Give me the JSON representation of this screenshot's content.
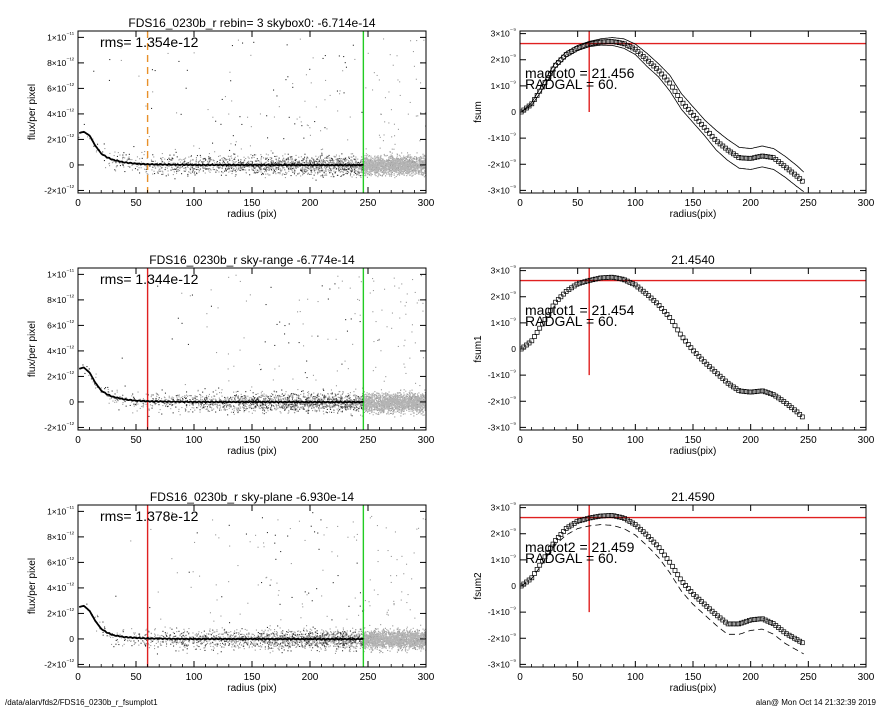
{
  "chart_data": [
    {
      "type": "scatter",
      "title": "FDS16_0230b_r rebin= 3    skybox0: -6.714e-14",
      "xlabel": "radius (pix)",
      "ylabel": "flux/per pixel",
      "xlim": [
        0,
        300
      ],
      "ylim": [
        -2.2e-12,
        1.05e-11
      ],
      "xticks": [
        0,
        50,
        100,
        150,
        200,
        250,
        300
      ],
      "yticks": [
        {
          "value": -2e-12,
          "label": "-2×10⁻¹²"
        },
        {
          "value": 0,
          "label": "0"
        },
        {
          "value": 2e-12,
          "label": "2×10⁻¹²"
        },
        {
          "value": 4e-12,
          "label": "4×10⁻¹²"
        },
        {
          "value": 6e-12,
          "label": "6×10⁻¹²"
        },
        {
          "value": 8e-12,
          "label": "8×10⁻¹²"
        },
        {
          "value": 1e-11,
          "label": "1×10⁻¹¹"
        }
      ],
      "annotations": [
        "rms= 1.354e-12"
      ],
      "vlines": [
        {
          "x": 60,
          "color": "#e8902a",
          "dashed": true
        },
        {
          "x": 246,
          "color": "#22cc22",
          "dashed": false
        }
      ],
      "profile": {
        "x": [
          1,
          5,
          10,
          15,
          20,
          25,
          30,
          40,
          50,
          60,
          80,
          100,
          150,
          200,
          246
        ],
        "y": [
          2.5e-12,
          2.6e-12,
          2.3e-12,
          1.5e-12,
          9e-13,
          6e-13,
          4e-13,
          2e-13,
          1e-13,
          5e-14,
          2e-14,
          0,
          0,
          -1e-14,
          -1e-14
        ]
      }
    },
    {
      "type": "scatter",
      "title": "FDS16_0230b_r sky-range -6.774e-14",
      "xlabel": "radius (pix)",
      "ylabel": "flux/per pixel",
      "xlim": [
        0,
        300
      ],
      "ylim": [
        -2.2e-12,
        1.05e-11
      ],
      "xticks": [
        0,
        50,
        100,
        150,
        200,
        250,
        300
      ],
      "yticks": [
        {
          "value": -2e-12,
          "label": "-2×10⁻¹²"
        },
        {
          "value": 0,
          "label": "0"
        },
        {
          "value": 2e-12,
          "label": "2×10⁻¹²"
        },
        {
          "value": 4e-12,
          "label": "4×10⁻¹²"
        },
        {
          "value": 6e-12,
          "label": "6×10⁻¹²"
        },
        {
          "value": 8e-12,
          "label": "8×10⁻¹²"
        },
        {
          "value": 1e-11,
          "label": "1×10⁻¹¹"
        }
      ],
      "annotations": [
        "rms= 1.344e-12"
      ],
      "vlines": [
        {
          "x": 60,
          "color": "#e02020",
          "dashed": false
        },
        {
          "x": 246,
          "color": "#22cc22",
          "dashed": false
        }
      ],
      "profile": {
        "x": [
          1,
          5,
          10,
          15,
          20,
          25,
          30,
          40,
          50,
          60,
          80,
          100,
          150,
          200,
          246
        ],
        "y": [
          2.6e-12,
          2.7e-12,
          2.3e-12,
          1.5e-12,
          9e-13,
          6e-13,
          4e-13,
          2e-13,
          1e-13,
          5e-14,
          2e-14,
          0,
          0,
          -1e-14,
          -1e-14
        ]
      }
    },
    {
      "type": "scatter",
      "title": "FDS16_0230b_r sky-plane -6.930e-14",
      "xlabel": "radius (pix)",
      "ylabel": "flux/per pixel",
      "xlim": [
        0,
        300
      ],
      "ylim": [
        -2.2e-12,
        1.05e-11
      ],
      "xticks": [
        0,
        50,
        100,
        150,
        200,
        250,
        300
      ],
      "yticks": [
        {
          "value": -2e-12,
          "label": "-2×10⁻¹²"
        },
        {
          "value": 0,
          "label": "0"
        },
        {
          "value": 2e-12,
          "label": "2×10⁻¹²"
        },
        {
          "value": 4e-12,
          "label": "4×10⁻¹²"
        },
        {
          "value": 6e-12,
          "label": "6×10⁻¹²"
        },
        {
          "value": 8e-12,
          "label": "8×10⁻¹²"
        },
        {
          "value": 1e-11,
          "label": "1×10⁻¹¹"
        }
      ],
      "annotations": [
        "rms= 1.378e-12"
      ],
      "vlines": [
        {
          "x": 60,
          "color": "#e02020",
          "dashed": false
        },
        {
          "x": 246,
          "color": "#22cc22",
          "dashed": false
        }
      ],
      "profile": {
        "x": [
          1,
          5,
          10,
          15,
          20,
          25,
          30,
          40,
          50,
          60,
          80,
          100,
          150,
          200,
          246
        ],
        "y": [
          2.5e-12,
          2.6e-12,
          2.2e-12,
          1.4e-12,
          8e-13,
          5e-13,
          3e-13,
          1.5e-13,
          8e-14,
          4e-14,
          1e-14,
          0,
          0,
          -1e-14,
          -1e-14
        ]
      }
    },
    {
      "type": "line",
      "title": "",
      "xlabel": "radius(pix)",
      "ylabel": "fsum",
      "xlim": [
        0,
        300
      ],
      "ylim": [
        -3.1e-09,
        3.1e-09
      ],
      "xticks": [
        0,
        50,
        100,
        150,
        200,
        250,
        300
      ],
      "yticks": [
        {
          "value": -3e-09,
          "label": "-3×10⁻⁹"
        },
        {
          "value": -2e-09,
          "label": "-2×10⁻⁹"
        },
        {
          "value": -1e-09,
          "label": "-1×10⁻⁹"
        },
        {
          "value": 0,
          "label": "0"
        },
        {
          "value": 1e-09,
          "label": "1×10⁻⁹"
        },
        {
          "value": 2e-09,
          "label": "2×10⁻⁹"
        },
        {
          "value": 3e-09,
          "label": "3×10⁻⁹"
        }
      ],
      "annotations": [
        "magtot0 =  21.456",
        "RADGAL =     60."
      ],
      "hline": {
        "y": 2.62e-09,
        "color": "#e02020"
      },
      "vline": {
        "x": 60,
        "color": "#e02020",
        "y_range": [
          0,
          3.1e-09
        ]
      },
      "series": [
        {
          "style": "markers",
          "x": [
            1,
            10,
            20,
            30,
            40,
            50,
            60,
            70,
            80,
            90,
            100,
            110,
            120,
            130,
            140,
            150,
            160,
            170,
            180,
            190,
            200,
            210,
            220,
            230,
            240,
            246
          ],
          "y": [
            0,
            3e-10,
            1e-09,
            1.75e-09,
            2.2e-09,
            2.45e-09,
            2.6e-09,
            2.68e-09,
            2.7e-09,
            2.62e-09,
            2.4e-09,
            2e-09,
            1.6e-09,
            1.1e-09,
            4e-10,
            -1e-10,
            -6e-10,
            -1.1e-09,
            -1.45e-09,
            -1.75e-09,
            -1.78e-09,
            -1.68e-09,
            -1.75e-09,
            -2.1e-09,
            -2.45e-09,
            -2.7e-09
          ]
        },
        {
          "style": "line",
          "x": [
            1,
            10,
            20,
            30,
            40,
            50,
            60,
            70,
            80,
            90,
            100,
            110,
            120,
            130,
            140,
            150,
            160,
            170,
            180,
            190,
            200,
            210,
            220,
            230,
            240,
            246
          ],
          "y": [
            0,
            3.5e-10,
            1.1e-09,
            1.85e-09,
            2.3e-09,
            2.55e-09,
            2.7e-09,
            2.8e-09,
            2.85e-09,
            2.8e-09,
            2.6e-09,
            2.25e-09,
            1.85e-09,
            1.4e-09,
            7e-10,
            2e-10,
            -3e-10,
            -7e-10,
            -1.05e-09,
            -1.35e-09,
            -1.4e-09,
            -1.3e-09,
            -1.4e-09,
            -1.7e-09,
            -2.05e-09,
            -2.3e-09
          ]
        },
        {
          "style": "line",
          "x": [
            1,
            10,
            20,
            30,
            40,
            50,
            60,
            70,
            80,
            90,
            100,
            110,
            120,
            130,
            140,
            150,
            160,
            170,
            180,
            190,
            200,
            210,
            220,
            230,
            240,
            246
          ],
          "y": [
            0,
            2.5e-10,
            9e-10,
            1.65e-09,
            2.1e-09,
            2.35e-09,
            2.5e-09,
            2.56e-09,
            2.55e-09,
            2.44e-09,
            2.2e-09,
            1.75e-09,
            1.35e-09,
            8e-10,
            1e-10,
            -4e-10,
            -9e-10,
            -1.45e-09,
            -1.85e-09,
            -2.15e-09,
            -2.2e-09,
            -2.1e-09,
            -2.2e-09,
            -2.5e-09,
            -2.85e-09,
            -3.05e-09
          ]
        }
      ]
    },
    {
      "type": "line",
      "title": "21.4540",
      "xlabel": "radius(pix)",
      "ylabel": "fsum1",
      "xlim": [
        0,
        300
      ],
      "ylim": [
        -3.1e-09,
        3.1e-09
      ],
      "xticks": [
        0,
        50,
        100,
        150,
        200,
        250,
        300
      ],
      "yticks": [
        {
          "value": -3e-09,
          "label": "-3×10⁻⁹"
        },
        {
          "value": -2e-09,
          "label": "-2×10⁻⁹"
        },
        {
          "value": -1e-09,
          "label": "-1×10⁻⁹"
        },
        {
          "value": 0,
          "label": "0"
        },
        {
          "value": 1e-09,
          "label": "1×10⁻⁹"
        },
        {
          "value": 2e-09,
          "label": "2×10⁻⁹"
        },
        {
          "value": 3e-09,
          "label": "3×10⁻⁹"
        }
      ],
      "annotations": [
        "magtot1 =  21.454",
        "RADGAL =     60."
      ],
      "hline": {
        "y": 2.62e-09,
        "color": "#e02020"
      },
      "vline": {
        "x": 60,
        "color": "#e02020",
        "y_range": [
          -1e-09,
          3.1e-09
        ]
      },
      "series": [
        {
          "style": "markers",
          "x": [
            1,
            10,
            20,
            30,
            40,
            50,
            60,
            70,
            80,
            90,
            100,
            110,
            120,
            130,
            140,
            150,
            160,
            170,
            180,
            190,
            200,
            210,
            220,
            230,
            240,
            246
          ],
          "y": [
            0,
            3e-10,
            1e-09,
            1.75e-09,
            2.2e-09,
            2.5e-09,
            2.62e-09,
            2.72e-09,
            2.75e-09,
            2.66e-09,
            2.45e-09,
            2.1e-09,
            1.7e-09,
            1.2e-09,
            5e-10,
            -5e-11,
            -5e-10,
            -9e-10,
            -1.3e-09,
            -1.6e-09,
            -1.65e-09,
            -1.6e-09,
            -1.75e-09,
            -2.05e-09,
            -2.4e-09,
            -2.65e-09
          ]
        }
      ]
    },
    {
      "type": "line",
      "title": "21.4590",
      "xlabel": "radius(pix)",
      "ylabel": "fsum2",
      "xlim": [
        0,
        300
      ],
      "ylim": [
        -3.1e-09,
        3.1e-09
      ],
      "xticks": [
        0,
        50,
        100,
        150,
        200,
        250,
        300
      ],
      "yticks": [
        {
          "value": -3e-09,
          "label": "-3×10⁻⁹"
        },
        {
          "value": -2e-09,
          "label": "-2×10⁻⁹"
        },
        {
          "value": -1e-09,
          "label": "-1×10⁻⁹"
        },
        {
          "value": 0,
          "label": "0"
        },
        {
          "value": 1e-09,
          "label": "1×10⁻⁹"
        },
        {
          "value": 2e-09,
          "label": "2×10⁻⁹"
        },
        {
          "value": 3e-09,
          "label": "3×10⁻⁹"
        }
      ],
      "annotations": [
        "magtot2 =  21.459",
        "RADGAL =     60."
      ],
      "hline": {
        "y": 2.62e-09,
        "color": "#e02020"
      },
      "vline": {
        "x": 60,
        "color": "#e02020",
        "y_range": [
          -1e-09,
          3.1e-09
        ]
      },
      "series": [
        {
          "style": "markers",
          "x": [
            1,
            10,
            20,
            30,
            40,
            50,
            60,
            70,
            80,
            90,
            100,
            110,
            120,
            130,
            140,
            150,
            160,
            170,
            180,
            190,
            200,
            210,
            220,
            230,
            240,
            246
          ],
          "y": [
            0,
            3e-10,
            1e-09,
            1.7e-09,
            2.2e-09,
            2.48e-09,
            2.6e-09,
            2.68e-09,
            2.7e-09,
            2.6e-09,
            2.35e-09,
            1.95e-09,
            1.5e-09,
            9e-10,
            2e-10,
            -3e-10,
            -7e-10,
            -1.1e-09,
            -1.45e-09,
            -1.45e-09,
            -1.3e-09,
            -1.25e-09,
            -1.45e-09,
            -1.8e-09,
            -2.05e-09,
            -2.2e-09
          ]
        },
        {
          "style": "dashed",
          "x": [
            1,
            10,
            20,
            30,
            40,
            50,
            60,
            70,
            80,
            90,
            100,
            110,
            120,
            130,
            140,
            150,
            160,
            170,
            180,
            190,
            200,
            210,
            220,
            230,
            240,
            246
          ],
          "y": [
            0,
            2.7e-10,
            9e-10,
            1.55e-09,
            1.95e-09,
            2.2e-09,
            2.3e-09,
            2.35e-09,
            2.32e-09,
            2.2e-09,
            1.95e-09,
            1.55e-09,
            1.1e-09,
            5e-10,
            -2e-10,
            -7e-10,
            -1.1e-09,
            -1.5e-09,
            -1.85e-09,
            -1.85e-09,
            -1.7e-09,
            -1.65e-09,
            -1.85e-09,
            -2.2e-09,
            -2.45e-09,
            -2.6e-09
          ]
        }
      ]
    }
  ],
  "footer": {
    "left": "/data/alan/fds2/FDS16_0230b_r_fsumplot1",
    "right": "alan@  Mon Oct 14 21:32:39 2019"
  },
  "colors": {
    "scatter_points": "#9a9a9a",
    "scatter_points_dark": "#333333",
    "profile": "#000000",
    "guide_red": "#e02020",
    "guide_green": "#22cc22",
    "guide_orange": "#e8902a"
  }
}
